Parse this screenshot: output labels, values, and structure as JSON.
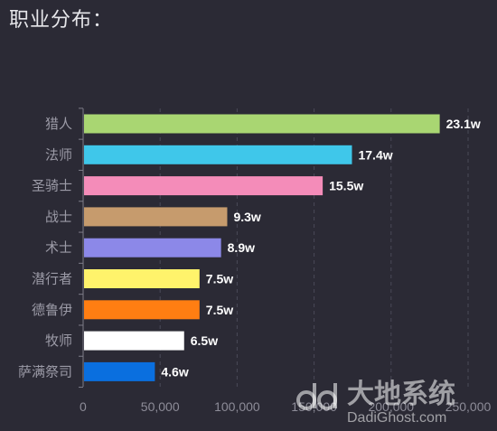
{
  "title": "职业分布：",
  "chart_data": {
    "type": "bar",
    "orientation": "horizontal",
    "categories": [
      "猎人",
      "法师",
      "圣骑士",
      "战士",
      "术士",
      "潜行者",
      "德鲁伊",
      "牧师",
      "萨满祭司"
    ],
    "values": [
      231000,
      174000,
      155000,
      93000,
      89000,
      75000,
      75000,
      65000,
      46000
    ],
    "value_labels": [
      "23.1w",
      "17.4w",
      "15.5w",
      "9.3w",
      "8.9w",
      "7.5w",
      "7.5w",
      "6.5w",
      "4.6w"
    ],
    "colors": [
      "#a9d672",
      "#3fc7ea",
      "#f48cb9",
      "#c69b6d",
      "#8c88e8",
      "#fff36b",
      "#ff7e12",
      "#ffffff",
      "#0a6fdf"
    ],
    "x_ticks": [
      0,
      50000,
      100000,
      150000,
      200000,
      250000
    ],
    "x_tick_labels": [
      "0",
      "50,000",
      "100,000",
      "150,000",
      "200,000",
      "250,000"
    ],
    "xlim": [
      0,
      250000
    ],
    "grid": "vertical-dashed"
  },
  "watermark": {
    "main": "大地系统",
    "sub": "DadiGhost.com"
  }
}
